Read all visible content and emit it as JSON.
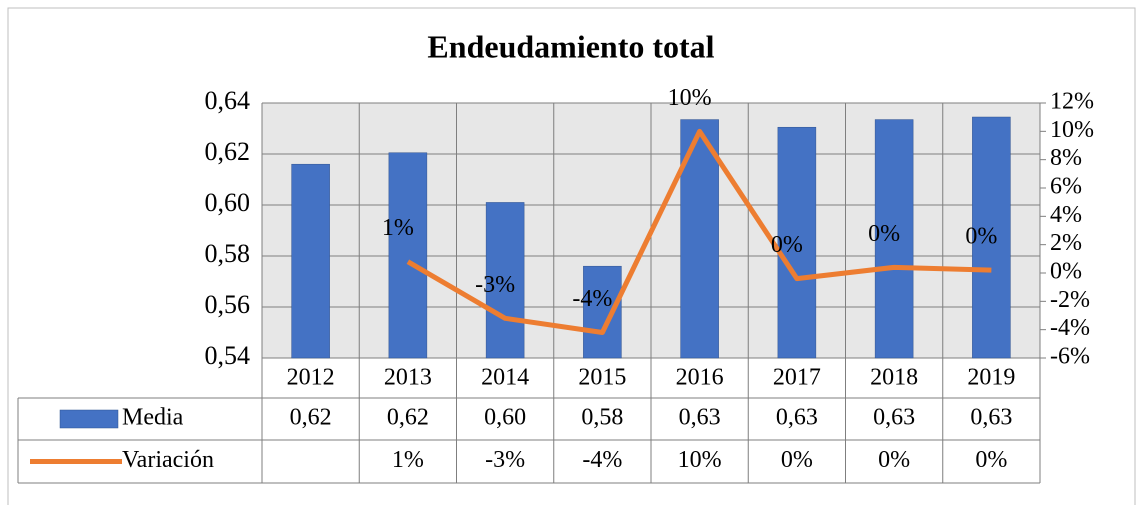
{
  "chart_data": {
    "type": "bar",
    "title": "Endeudamiento total",
    "categories": [
      "2012",
      "2013",
      "2014",
      "2015",
      "2016",
      "2017",
      "2018",
      "2019"
    ],
    "series": [
      {
        "name": "Media",
        "color": "#4472c4",
        "type": "bar",
        "values": [
          0.616,
          0.6205,
          0.601,
          0.576,
          0.6335,
          0.6305,
          0.6335,
          0.6345
        ],
        "value_labels": [
          "0,62",
          "0,62",
          "0,60",
          "0,58",
          "0,63",
          "0,63",
          "0,63",
          "0,63"
        ]
      },
      {
        "name": "Variación",
        "color": "#ed7d31",
        "type": "line",
        "axis": "y2",
        "values": [
          null,
          0.8,
          -3.2,
          -4.2,
          10,
          -0.4,
          0.4,
          0.2
        ],
        "value_labels": [
          null,
          "1%",
          "-3%",
          "-4%",
          "10%",
          "0%",
          "0%",
          "0%"
        ]
      }
    ],
    "ylim": [
      0.54,
      0.64
    ],
    "yticks": [
      {
        "value": 0.54,
        "label": "0,54"
      },
      {
        "value": 0.56,
        "label": "0,56"
      },
      {
        "value": 0.58,
        "label": "0,58"
      },
      {
        "value": 0.6,
        "label": "0,60"
      },
      {
        "value": 0.62,
        "label": "0,62"
      },
      {
        "value": 0.64,
        "label": "0,64"
      }
    ],
    "y2lim": [
      -6,
      12
    ],
    "y2ticks": [
      {
        "value": -6,
        "label": "-6%"
      },
      {
        "value": -4,
        "label": "-4%"
      },
      {
        "value": -2,
        "label": "-2%"
      },
      {
        "value": 0,
        "label": "0%"
      },
      {
        "value": 2,
        "label": "2%"
      },
      {
        "value": 4,
        "label": "4%"
      },
      {
        "value": 6,
        "label": "6%"
      },
      {
        "value": 8,
        "label": "8%"
      },
      {
        "value": 10,
        "label": "10%"
      },
      {
        "value": 12,
        "label": "12%"
      }
    ],
    "grid": true
  }
}
